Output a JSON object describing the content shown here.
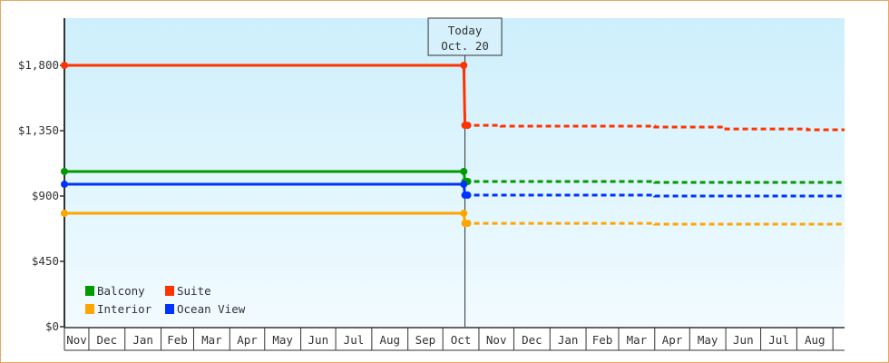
{
  "chart_data": {
    "type": "line",
    "title": "",
    "xlabel": "",
    "ylabel": "",
    "ylim": [
      0,
      2100
    ],
    "y_ticks": [
      0,
      450,
      900,
      1350,
      1800
    ],
    "y_tick_labels": [
      "$0",
      "$450",
      "$900",
      "$1,350",
      "$1,800"
    ],
    "x_axis": {
      "categories": [
        "Nov",
        "Dec",
        "Jan",
        "Feb",
        "Mar",
        "Apr",
        "May",
        "Jun",
        "Jul",
        "Aug",
        "Sep",
        "Oct",
        "Nov",
        "Dec",
        "Jan",
        "Feb",
        "Mar",
        "Apr",
        "May",
        "Jun",
        "Jul",
        "Aug",
        ""
      ],
      "month_days": [
        30,
        31,
        31,
        28,
        31,
        30,
        31,
        30,
        31,
        31,
        30,
        31,
        30,
        31,
        31,
        28,
        31,
        30,
        31,
        30,
        31,
        31,
        30
      ],
      "start": {
        "month": 0,
        "day": 10
      },
      "end": {
        "month": 22,
        "day": 11
      }
    },
    "today_marker": {
      "line1": "Today",
      "line2": "Oct. 20",
      "month": 11,
      "day": 20
    },
    "grid": false,
    "legend_placement": "bottom-left",
    "series": [
      {
        "name": "Balcony",
        "color": "#009900",
        "history": [
          {
            "month": 0,
            "day": 10,
            "value": 1069
          },
          {
            "month": 11,
            "day": 19,
            "value": 1069
          },
          {
            "month": 11,
            "day": 20,
            "value": 1000
          }
        ],
        "forecast": [
          {
            "month": 11,
            "day": 20,
            "value": 1000
          },
          {
            "month": 17,
            "day": 1,
            "value": 994
          },
          {
            "month": 22,
            "day": 11,
            "value": 994
          }
        ]
      },
      {
        "name": "Suite",
        "color": "#ff3300",
        "history": [
          {
            "month": 0,
            "day": 10,
            "value": 1800
          },
          {
            "month": 11,
            "day": 19,
            "value": 1800
          },
          {
            "month": 11,
            "day": 20,
            "value": 1387
          }
        ],
        "forecast": [
          {
            "month": 11,
            "day": 20,
            "value": 1387
          },
          {
            "month": 12,
            "day": 20,
            "value": 1381
          },
          {
            "month": 17,
            "day": 1,
            "value": 1375
          },
          {
            "month": 19,
            "day": 1,
            "value": 1362
          },
          {
            "month": 21,
            "day": 10,
            "value": 1356
          },
          {
            "month": 22,
            "day": 11,
            "value": 1356
          }
        ]
      },
      {
        "name": "Interior",
        "color": "#ffa500",
        "history": [
          {
            "month": 0,
            "day": 10,
            "value": 781
          },
          {
            "month": 11,
            "day": 19,
            "value": 781
          },
          {
            "month": 11,
            "day": 20,
            "value": 712
          }
        ],
        "forecast": [
          {
            "month": 11,
            "day": 20,
            "value": 712
          },
          {
            "month": 17,
            "day": 1,
            "value": 706
          },
          {
            "month": 22,
            "day": 11,
            "value": 706
          }
        ]
      },
      {
        "name": "Ocean View",
        "color": "#0033ff",
        "history": [
          {
            "month": 0,
            "day": 10,
            "value": 981
          },
          {
            "month": 11,
            "day": 19,
            "value": 981
          },
          {
            "month": 11,
            "day": 20,
            "value": 906
          }
        ],
        "forecast": [
          {
            "month": 11,
            "day": 20,
            "value": 906
          },
          {
            "month": 17,
            "day": 1,
            "value": 900
          },
          {
            "month": 22,
            "day": 11,
            "value": 900
          }
        ]
      }
    ]
  }
}
